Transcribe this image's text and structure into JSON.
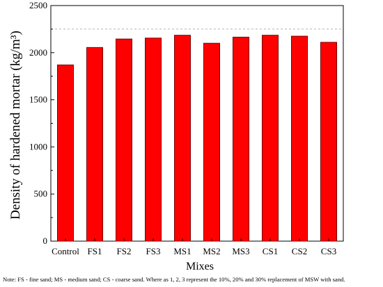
{
  "chart_data": {
    "type": "bar",
    "categories": [
      "Control",
      "FS1",
      "FS2",
      "FS3",
      "MS1",
      "MS2",
      "MS3",
      "CS1",
      "CS2",
      "CS3"
    ],
    "values": [
      1870,
      2055,
      2145,
      2155,
      2185,
      2100,
      2165,
      2185,
      2175,
      2110
    ],
    "xlabel": "Mixes",
    "ylabel": "Density of hardened mortar (kg/m³)",
    "ylim": [
      0,
      2500
    ],
    "yticks": [
      "0",
      "500",
      "1000",
      "1500",
      "2000",
      "2500"
    ],
    "grid": false,
    "reference_line": 2250,
    "colors": {
      "bar_fill": "#ff0000",
      "bar_edge": "#7a0000",
      "axis": "#000000"
    }
  },
  "note": "Note: FS - fine sand; MS - medium sand; CS - coarse sand. Where as 1, 2, 3 represent the 10%, 20% and 30% replacement of MSW with sand."
}
